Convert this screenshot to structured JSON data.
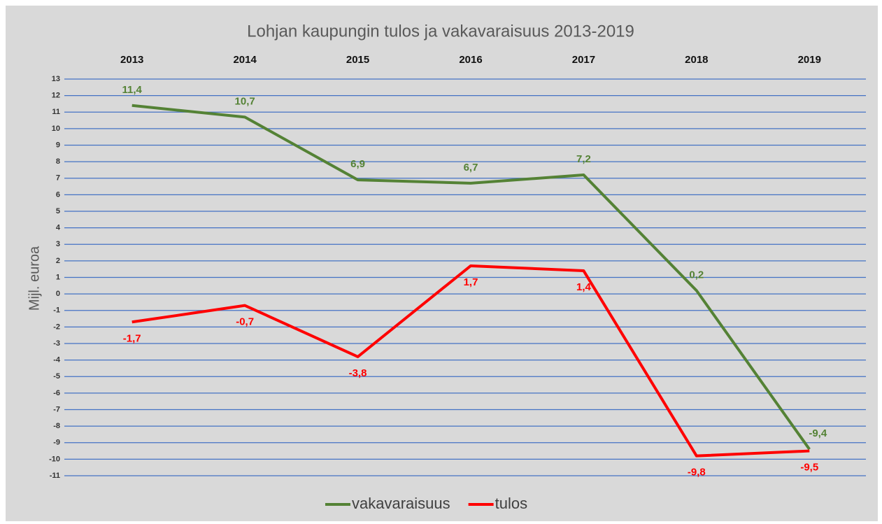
{
  "chart_data": {
    "type": "line",
    "title": "Lohjan kaupungin tulos ja vakavaraisuus 2013-2019",
    "y_label": "Mijl. euroa",
    "categories": [
      "2013",
      "2014",
      "2015",
      "2016",
      "2017",
      "2018",
      "2019"
    ],
    "series": [
      {
        "name": "vakavaraisuus",
        "color": "#548235",
        "values": [
          11.4,
          10.7,
          6.9,
          6.7,
          7.2,
          0.2,
          -9.4
        ],
        "value_labels": [
          "11,4",
          "10,7",
          "6,9",
          "6,7",
          "7,2",
          "0,2",
          "-9,4"
        ]
      },
      {
        "name": "tulos",
        "color": "#ff0000",
        "values": [
          -1.7,
          -0.7,
          -3.8,
          1.7,
          1.4,
          -9.8,
          -9.5
        ],
        "value_labels": [
          "-1,7",
          "-0,7",
          "-3,8",
          "1,7",
          "1,4",
          "-9,8",
          "-9,5"
        ]
      }
    ],
    "ylim": [
      -11,
      13
    ],
    "yticks": [
      -11,
      -10,
      -9,
      -8,
      -7,
      -6,
      -5,
      -4,
      -3,
      -2,
      -1,
      0,
      1,
      2,
      3,
      4,
      5,
      6,
      7,
      8,
      9,
      10,
      11,
      12,
      13
    ],
    "grid": true,
    "grid_color": "#4472c4",
    "legend": "bottom"
  }
}
